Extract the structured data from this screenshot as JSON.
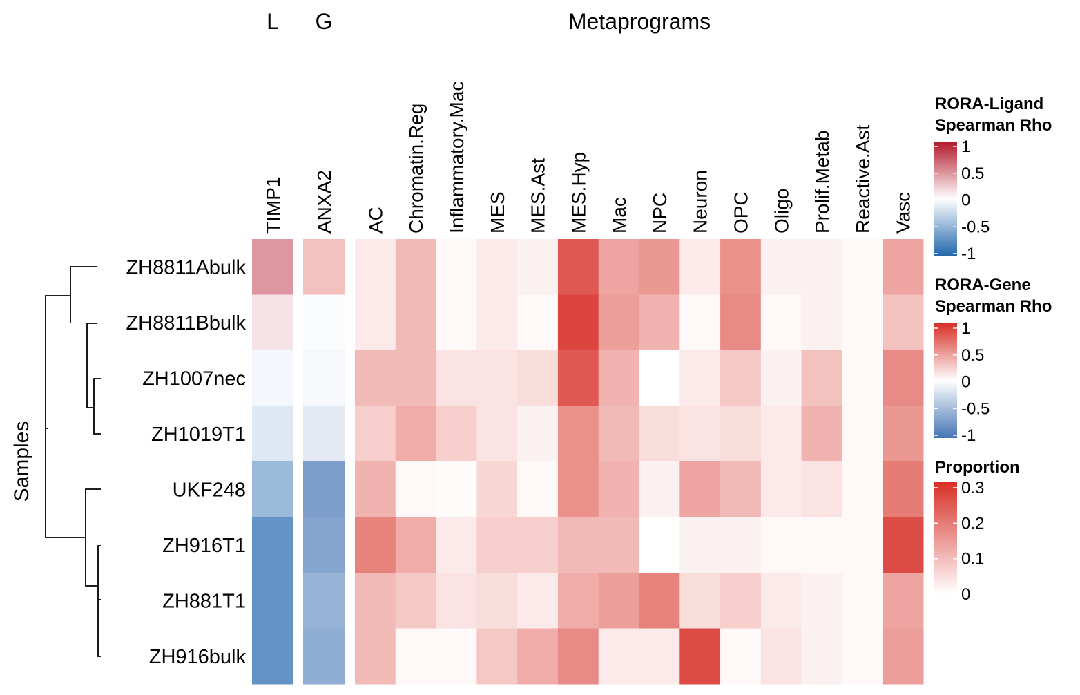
{
  "chart_data": {
    "type": "heatmap",
    "y_axis_title": "Samples",
    "group_headers": {
      "ligand": "L",
      "gene": "G",
      "metaprograms": "Metaprograms"
    },
    "rows": [
      "ZH8811Abulk",
      "ZH8811Bbulk",
      "ZH1007nec",
      "ZH1019T1",
      "UKF248",
      "ZH916T1",
      "ZH881T1",
      "ZH916bulk"
    ],
    "ligand_column": {
      "name": "TIMP1",
      "values": [
        0.45,
        0.12,
        -0.05,
        -0.15,
        -0.45,
        -0.7,
        -0.7,
        -0.7
      ]
    },
    "gene_column": {
      "name": "ANXA2",
      "values": [
        0.3,
        -0.02,
        -0.05,
        -0.15,
        -0.7,
        -0.65,
        -0.55,
        -0.6
      ]
    },
    "metaprograms": {
      "columns": [
        "AC",
        "Chromatin.Reg",
        "Inflammatory.Mac",
        "MES",
        "MES.Ast",
        "MES.Hyp",
        "Mac",
        "NPC",
        "Neuron",
        "OPC",
        "Oligo",
        "Prolif.Metab",
        "Reactive.Ast",
        "Vasc"
      ],
      "values": [
        [
          0.03,
          0.1,
          0.01,
          0.03,
          0.02,
          0.24,
          0.13,
          0.15,
          0.03,
          0.16,
          0.02,
          0.02,
          0.01,
          0.13
        ],
        [
          0.03,
          0.1,
          0.01,
          0.03,
          0.01,
          0.27,
          0.14,
          0.11,
          0.01,
          0.17,
          0.01,
          0.02,
          0.01,
          0.09
        ],
        [
          0.1,
          0.1,
          0.04,
          0.04,
          0.05,
          0.24,
          0.11,
          0.0,
          0.03,
          0.08,
          0.02,
          0.09,
          0.01,
          0.17
        ],
        [
          0.07,
          0.12,
          0.07,
          0.04,
          0.02,
          0.16,
          0.1,
          0.05,
          0.04,
          0.05,
          0.03,
          0.11,
          0.01,
          0.15
        ],
        [
          0.11,
          0.01,
          0.005,
          0.06,
          0.01,
          0.16,
          0.11,
          0.02,
          0.13,
          0.1,
          0.03,
          0.04,
          0.01,
          0.19
        ],
        [
          0.18,
          0.12,
          0.03,
          0.07,
          0.07,
          0.1,
          0.1,
          0.0,
          0.02,
          0.02,
          0.01,
          0.01,
          0.01,
          0.26
        ],
        [
          0.1,
          0.08,
          0.04,
          0.05,
          0.03,
          0.12,
          0.14,
          0.18,
          0.05,
          0.07,
          0.03,
          0.02,
          0.01,
          0.13
        ],
        [
          0.1,
          0.01,
          0.01,
          0.08,
          0.12,
          0.17,
          0.03,
          0.03,
          0.26,
          0.01,
          0.04,
          0.02,
          0.01,
          0.14
        ]
      ]
    },
    "legends": [
      {
        "title_lines": [
          "RORA-Ligand",
          "Spearman Rho"
        ],
        "ticks": [
          "1",
          "0.5",
          "0",
          "-0.5",
          "-1"
        ],
        "range": [
          -1,
          1
        ],
        "colors": [
          "#2166ac",
          "#ffffff",
          "#b2182b"
        ]
      },
      {
        "title_lines": [
          "RORA-Gene",
          "Spearman Rho"
        ],
        "ticks": [
          "1",
          "0.5",
          "0",
          "-0.5",
          "-1"
        ],
        "range": [
          -1,
          1
        ],
        "colors": [
          "#4575b4",
          "#ffffff",
          "#d73027"
        ]
      },
      {
        "title_lines": [
          "Proportion"
        ],
        "ticks": [
          "0.3",
          "0.2",
          "0.1",
          "0"
        ],
        "range": [
          0,
          0.3
        ],
        "colors": [
          "#ffffff",
          "#d73027"
        ]
      }
    ]
  }
}
